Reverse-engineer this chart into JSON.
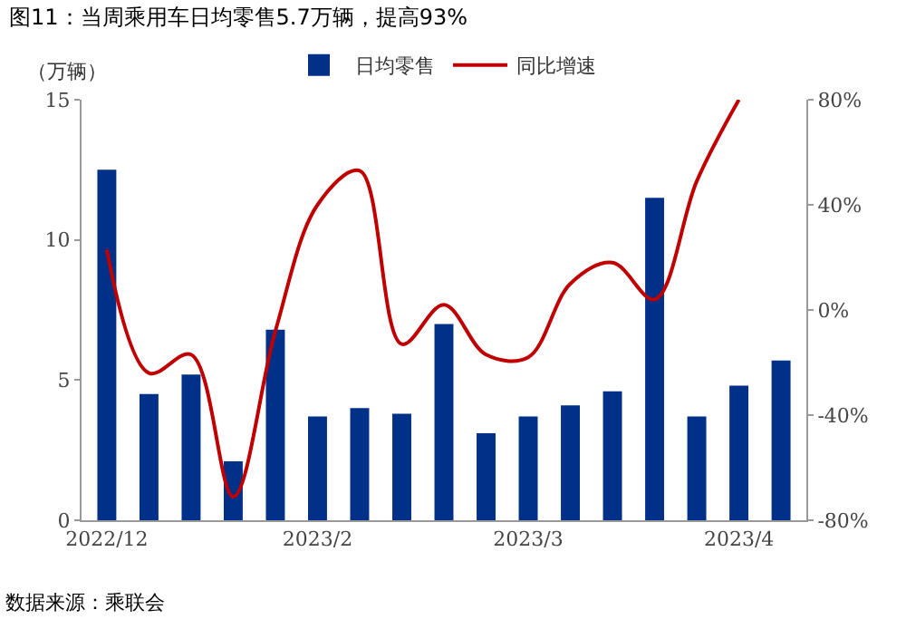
{
  "chart_data": {
    "type": "bar",
    "title": "图11：当周乘用车日均零售5.7万辆，提高93%",
    "ylabel": "（万辆）",
    "categories": [
      "2022/12",
      null,
      null,
      null,
      null,
      "2023/2",
      null,
      null,
      null,
      null,
      "2023/3",
      null,
      null,
      null,
      null,
      "2023/4",
      null
    ],
    "series": [
      {
        "name": "日均零售",
        "color": "#003087",
        "values": [
          12.5,
          4.5,
          5.2,
          2.1,
          6.8,
          3.7,
          4.0,
          3.8,
          7.0,
          3.1,
          3.7,
          4.1,
          4.6,
          11.5,
          3.7,
          4.8,
          5.7
        ]
      },
      {
        "name": "同比增速",
        "type": "line",
        "axis": "y2",
        "color": "#c00000",
        "values": [
          23,
          -24,
          -17,
          -71,
          -8,
          40,
          53,
          -13,
          2,
          -17,
          -18,
          10,
          18,
          4,
          49,
          80,
          null
        ]
      }
    ],
    "ylim": [
      0,
      15
    ],
    "yticks": [
      0,
      5,
      10,
      15
    ],
    "y2lim": [
      -80,
      80
    ],
    "y2ticks": [
      {
        "value": -80,
        "label": "-80%"
      },
      {
        "value": -40,
        "label": "-40%"
      },
      {
        "value": 0,
        "label": "0%"
      },
      {
        "value": 40,
        "label": "40%"
      },
      {
        "value": 80,
        "label": "80%"
      }
    ],
    "grid": false,
    "legend": "top",
    "marker": "none",
    "line_style": "solid",
    "annotations": [
      "数据来源：乘联会"
    ]
  }
}
